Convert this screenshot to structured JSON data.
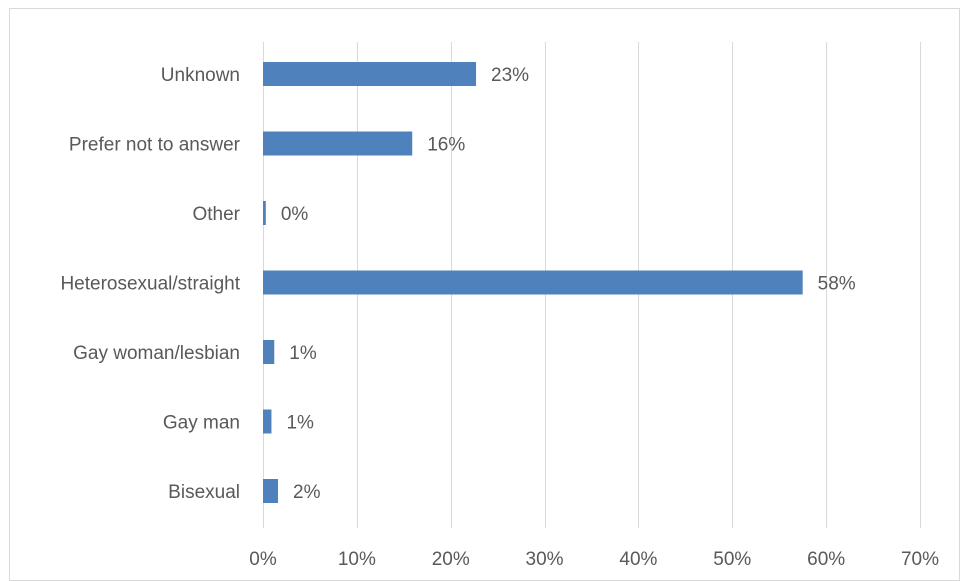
{
  "chart_data": {
    "type": "bar",
    "orientation": "horizontal",
    "categories": [
      "Unknown",
      "Prefer not to answer",
      "Other",
      "Heterosexual/straight",
      "Gay woman/lesbian",
      "Gay man",
      "Bisexual"
    ],
    "values": [
      0.227,
      0.159,
      0.003,
      0.575,
      0.012,
      0.009,
      0.016
    ],
    "data_labels": [
      "23%",
      "16%",
      "0%",
      "58%",
      "1%",
      "1%",
      "2%"
    ],
    "xlim": [
      0,
      0.7
    ],
    "x_ticks": [
      0,
      0.1,
      0.2,
      0.3,
      0.4,
      0.5,
      0.6,
      0.7
    ],
    "x_tick_labels": [
      "0%",
      "10%",
      "20%",
      "30%",
      "40%",
      "50%",
      "60%",
      "70%"
    ],
    "grid": "vertical",
    "legend": "none",
    "bar_color": "#4f81bd",
    "grid_color": "#d9d9d9",
    "text_color": "#595959"
  }
}
